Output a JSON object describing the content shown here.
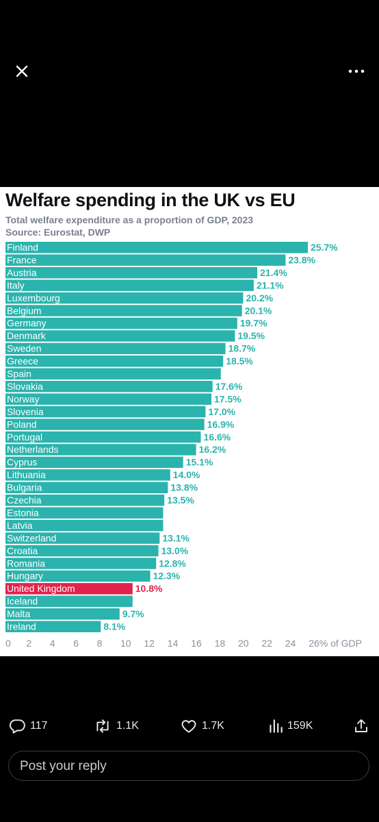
{
  "chart_data": {
    "type": "bar",
    "orientation": "horizontal",
    "title": "Welfare spending in the UK vs EU",
    "subtitle": "Total welfare expenditure as a proportion of GDP, 2023",
    "source": "Source: Eurostat, DWP",
    "x_ticks": [
      "0",
      "2",
      "4",
      "6",
      "8",
      "10",
      "12",
      "14",
      "16",
      "18",
      "20",
      "22",
      "24",
      "26% of GDP"
    ],
    "xlim": [
      0,
      26
    ],
    "bar_color": "#2bb3ad",
    "highlight_color": "#e0234e",
    "highlight": "United Kingdom",
    "categories": [
      "Finland",
      "France",
      "Austria",
      "Italy",
      "Luxembourg",
      "Belgium",
      "Germany",
      "Denmark",
      "Sweden",
      "Greece",
      "Spain",
      "Slovakia",
      "Norway",
      "Slovenia",
      "Poland",
      "Portugal",
      "Netherlands",
      "Cyprus",
      "Lithuania",
      "Bulgaria",
      "Czechia",
      "Estonia",
      "Latvia",
      "Switzerland",
      "Croatia",
      "Romania",
      "Hungary",
      "United Kingdom",
      "Iceland",
      "Malta",
      "Ireland"
    ],
    "values": [
      25.7,
      23.8,
      21.4,
      21.1,
      20.2,
      20.1,
      19.7,
      19.5,
      18.7,
      18.5,
      18.3,
      17.6,
      17.5,
      17.0,
      16.9,
      16.6,
      16.2,
      15.1,
      14.0,
      13.8,
      13.5,
      13.4,
      13.4,
      13.1,
      13.0,
      12.8,
      12.3,
      10.8,
      10.8,
      9.7,
      8.1
    ],
    "labels": [
      "25.7%",
      "23.8%",
      "21.4%",
      "21.1%",
      "20.2%",
      "20.1%",
      "19.7%",
      "19.5%",
      "18.7%",
      "18.5%",
      "",
      "17.6%",
      "17.5%",
      "17.0%",
      "16.9%",
      "16.6%",
      "16.2%",
      "15.1%",
      "14.0%",
      "13.8%",
      "13.5%",
      "",
      "",
      "13.1%",
      "13.0%",
      "12.8%",
      "12.3%",
      "10.8%",
      "",
      "9.7%",
      "8.1%"
    ]
  },
  "actions": {
    "replies": "117",
    "reposts": "1.1K",
    "likes": "1.7K",
    "views": "159K"
  },
  "reply": {
    "placeholder": "Post your reply"
  },
  "icons": [
    "close-icon",
    "more-icon",
    "reply-icon",
    "repost-icon",
    "like-icon",
    "views-icon",
    "share-icon"
  ]
}
